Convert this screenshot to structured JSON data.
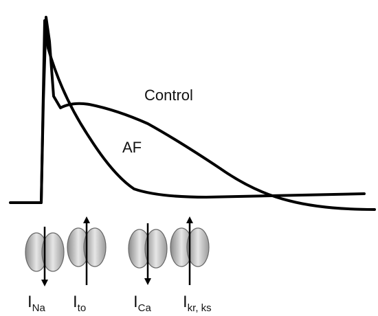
{
  "curves": [
    {
      "label": "Control"
    },
    {
      "label": "AF"
    }
  ],
  "channels": [
    {
      "symbol": "I",
      "subscript": "Na"
    },
    {
      "symbol": "I",
      "subscript": "to"
    },
    {
      "symbol": "I",
      "subscript": "Ca"
    },
    {
      "symbol": "I",
      "subscript": "kr, ks"
    }
  ]
}
